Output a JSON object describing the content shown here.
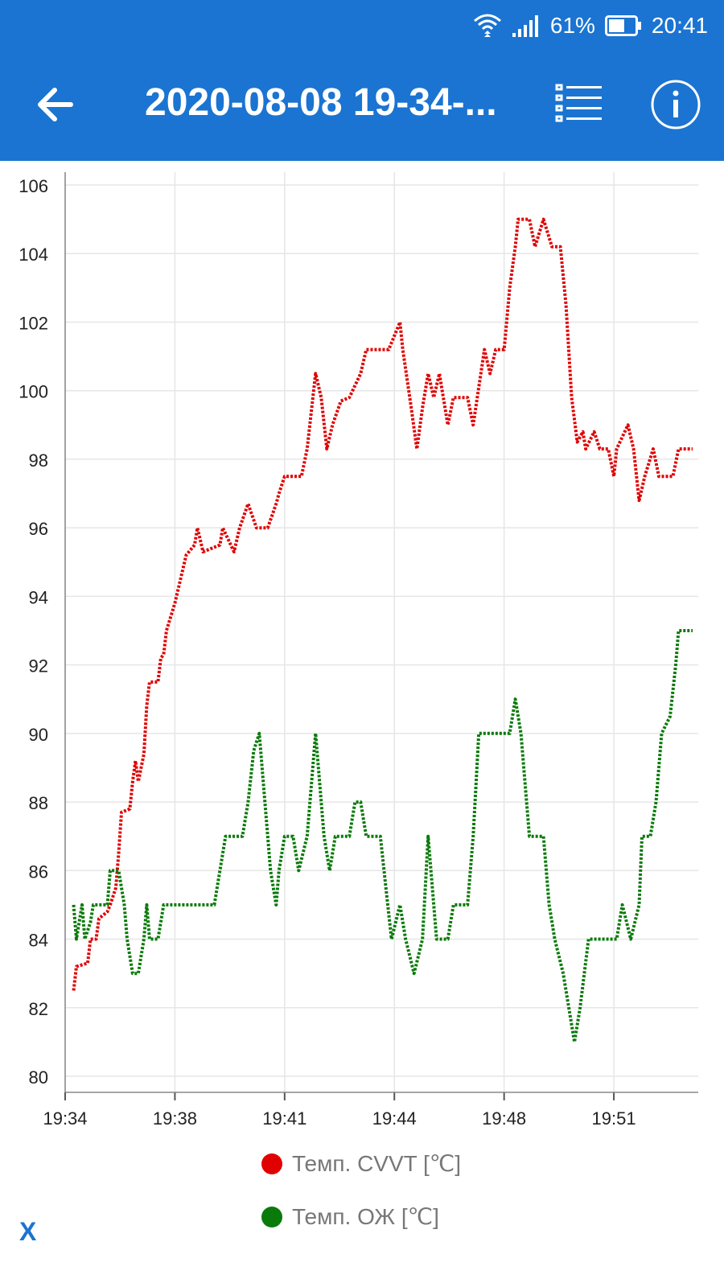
{
  "status_bar": {
    "battery_percent": "61%",
    "time": "20:41",
    "battery_level": 0.61
  },
  "toolbar": {
    "title": "2020-08-08 19-34-..."
  },
  "colors": {
    "appbar": "#1b74d1",
    "series_cvvt": "#e00000",
    "series_coolant": "#0a7a0a"
  },
  "icons": {
    "back": "arrow-left-icon",
    "list": "list-icon",
    "info": "info-icon"
  },
  "footer": {
    "close_label": "X"
  },
  "chart_data": {
    "type": "line",
    "ylim": [
      80,
      106
    ],
    "y_ticks": [
      80,
      82,
      84,
      86,
      88,
      90,
      92,
      94,
      96,
      98,
      100,
      102,
      104,
      106
    ],
    "x_tick_labels": [
      "19:34",
      "19:38",
      "19:41",
      "19:44",
      "19:48",
      "19:51"
    ],
    "x_tick_minutes": [
      0,
      3.9,
      7.8,
      11.7,
      15.6,
      19.5
    ],
    "x_max_minutes": 22.5,
    "grid": true,
    "legend_position": "bottom",
    "series": [
      {
        "name": "Темп. CVVT [℃]",
        "color": "#e00000",
        "points": [
          [
            0.3,
            82.5
          ],
          [
            0.4,
            83.2
          ],
          [
            0.8,
            83.3
          ],
          [
            0.9,
            84.0
          ],
          [
            1.1,
            84.0
          ],
          [
            1.2,
            84.6
          ],
          [
            1.5,
            84.8
          ],
          [
            1.6,
            85.0
          ],
          [
            1.8,
            85.5
          ],
          [
            1.9,
            86.5
          ],
          [
            2.0,
            87.7
          ],
          [
            2.3,
            87.8
          ],
          [
            2.4,
            88.6
          ],
          [
            2.5,
            89.2
          ],
          [
            2.6,
            88.6
          ],
          [
            2.8,
            89.4
          ],
          [
            2.9,
            90.8
          ],
          [
            3.0,
            91.5
          ],
          [
            3.3,
            91.5
          ],
          [
            3.4,
            92.2
          ],
          [
            3.5,
            92.3
          ],
          [
            3.6,
            93.0
          ],
          [
            3.9,
            93.8
          ],
          [
            4.1,
            94.5
          ],
          [
            4.3,
            95.2
          ],
          [
            4.6,
            95.5
          ],
          [
            4.7,
            96.0
          ],
          [
            4.9,
            95.3
          ],
          [
            5.5,
            95.5
          ],
          [
            5.6,
            96.0
          ],
          [
            6.0,
            95.3
          ],
          [
            6.2,
            96.0
          ],
          [
            6.5,
            96.7
          ],
          [
            6.8,
            96.0
          ],
          [
            7.2,
            96.0
          ],
          [
            7.5,
            96.7
          ],
          [
            7.6,
            97.0
          ],
          [
            7.8,
            97.5
          ],
          [
            8.4,
            97.5
          ],
          [
            8.6,
            98.3
          ],
          [
            8.9,
            100.5
          ],
          [
            9.1,
            99.8
          ],
          [
            9.3,
            98.3
          ],
          [
            9.5,
            99.0
          ],
          [
            9.8,
            99.7
          ],
          [
            10.1,
            99.8
          ],
          [
            10.5,
            100.5
          ],
          [
            10.7,
            101.2
          ],
          [
            11.5,
            101.2
          ],
          [
            11.9,
            102.0
          ],
          [
            12.0,
            101.2
          ],
          [
            12.3,
            99.5
          ],
          [
            12.5,
            98.3
          ],
          [
            12.7,
            99.5
          ],
          [
            12.9,
            100.5
          ],
          [
            13.1,
            99.8
          ],
          [
            13.3,
            100.5
          ],
          [
            13.6,
            99.0
          ],
          [
            13.8,
            99.8
          ],
          [
            14.3,
            99.8
          ],
          [
            14.5,
            99.0
          ],
          [
            14.9,
            101.2
          ],
          [
            15.1,
            100.5
          ],
          [
            15.3,
            101.2
          ],
          [
            15.6,
            101.2
          ],
          [
            15.8,
            103.0
          ],
          [
            16.0,
            104.2
          ],
          [
            16.1,
            105.0
          ],
          [
            16.5,
            105.0
          ],
          [
            16.7,
            104.2
          ],
          [
            17.0,
            105.0
          ],
          [
            17.3,
            104.2
          ],
          [
            17.6,
            104.2
          ],
          [
            17.8,
            102.5
          ],
          [
            18.0,
            99.8
          ],
          [
            18.2,
            98.5
          ],
          [
            18.4,
            98.8
          ],
          [
            18.5,
            98.3
          ],
          [
            18.8,
            98.8
          ],
          [
            19.0,
            98.3
          ],
          [
            19.3,
            98.3
          ],
          [
            19.5,
            97.5
          ],
          [
            19.6,
            98.3
          ],
          [
            20.0,
            99.0
          ],
          [
            20.2,
            98.3
          ],
          [
            20.4,
            96.8
          ],
          [
            20.6,
            97.5
          ],
          [
            20.9,
            98.3
          ],
          [
            21.1,
            97.5
          ],
          [
            21.6,
            97.5
          ],
          [
            21.8,
            98.3
          ],
          [
            22.3,
            98.3
          ]
        ]
      },
      {
        "name": "Темп. ОЖ [℃]",
        "color": "#0a7a0a",
        "points": [
          [
            0.3,
            85.0
          ],
          [
            0.4,
            84.0
          ],
          [
            0.6,
            85.0
          ],
          [
            0.7,
            84.0
          ],
          [
            0.9,
            84.5
          ],
          [
            1.0,
            85.0
          ],
          [
            1.5,
            85.0
          ],
          [
            1.6,
            86.0
          ],
          [
            1.9,
            86.0
          ],
          [
            2.1,
            85.0
          ],
          [
            2.2,
            84.0
          ],
          [
            2.4,
            83.0
          ],
          [
            2.6,
            83.0
          ],
          [
            2.8,
            84.0
          ],
          [
            2.9,
            85.0
          ],
          [
            3.0,
            84.0
          ],
          [
            3.3,
            84.0
          ],
          [
            3.5,
            85.0
          ],
          [
            5.3,
            85.0
          ],
          [
            5.5,
            86.0
          ],
          [
            5.7,
            87.0
          ],
          [
            6.3,
            87.0
          ],
          [
            6.5,
            88.0
          ],
          [
            6.7,
            89.5
          ],
          [
            6.9,
            90.0
          ],
          [
            7.1,
            88.0
          ],
          [
            7.3,
            86.0
          ],
          [
            7.5,
            85.0
          ],
          [
            7.6,
            86.0
          ],
          [
            7.8,
            87.0
          ],
          [
            8.1,
            87.0
          ],
          [
            8.3,
            86.0
          ],
          [
            8.6,
            87.0
          ],
          [
            8.9,
            90.0
          ],
          [
            9.2,
            87.0
          ],
          [
            9.4,
            86.0
          ],
          [
            9.6,
            87.0
          ],
          [
            10.1,
            87.0
          ],
          [
            10.3,
            88.0
          ],
          [
            10.5,
            88.0
          ],
          [
            10.7,
            87.0
          ],
          [
            11.2,
            87.0
          ],
          [
            11.4,
            85.5
          ],
          [
            11.6,
            84.0
          ],
          [
            11.9,
            85.0
          ],
          [
            12.1,
            84.0
          ],
          [
            12.4,
            83.0
          ],
          [
            12.7,
            84.0
          ],
          [
            12.9,
            87.0
          ],
          [
            13.2,
            84.0
          ],
          [
            13.6,
            84.0
          ],
          [
            13.8,
            85.0
          ],
          [
            14.3,
            85.0
          ],
          [
            14.5,
            87.0
          ],
          [
            14.7,
            90.0
          ],
          [
            15.8,
            90.0
          ],
          [
            16.0,
            91.0
          ],
          [
            16.2,
            90.0
          ],
          [
            16.5,
            87.0
          ],
          [
            17.0,
            87.0
          ],
          [
            17.2,
            85.0
          ],
          [
            17.4,
            84.0
          ],
          [
            17.7,
            83.0
          ],
          [
            17.9,
            82.0
          ],
          [
            18.1,
            81.0
          ],
          [
            18.3,
            82.0
          ],
          [
            18.6,
            84.0
          ],
          [
            19.6,
            84.0
          ],
          [
            19.8,
            85.0
          ],
          [
            20.1,
            84.0
          ],
          [
            20.4,
            85.0
          ],
          [
            20.5,
            87.0
          ],
          [
            20.8,
            87.0
          ],
          [
            21.0,
            88.0
          ],
          [
            21.2,
            90.0
          ],
          [
            21.5,
            90.5
          ],
          [
            21.7,
            92.0
          ],
          [
            21.8,
            93.0
          ],
          [
            22.3,
            93.0
          ]
        ]
      }
    ]
  }
}
